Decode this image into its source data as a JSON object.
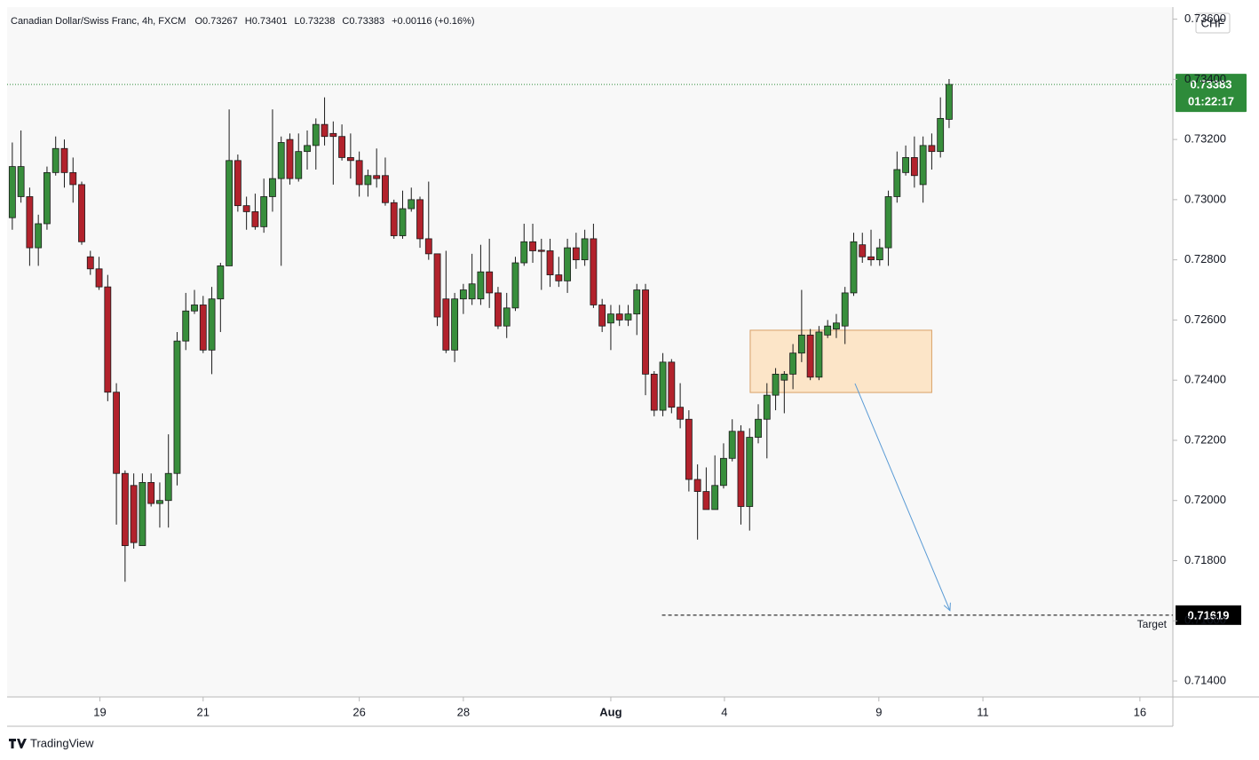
{
  "chart_data": {
    "type": "candlestick",
    "header": {
      "symbol": "Canadian Dollar/Swiss Franc, 4h, FXCM",
      "fields": [
        {
          "key": "O",
          "text": "0.73267"
        },
        {
          "key": "H",
          "text": "0.73401"
        },
        {
          "key": "L",
          "text": "0.73238"
        },
        {
          "key": "C",
          "text": "0.73383"
        }
      ],
      "change": "+0.00116 (+0.16%)"
    },
    "currency": "CHF",
    "up_color": "#388e3c",
    "down_color": "#b2222c",
    "open": [
      0.7294,
      0.7301,
      0.7301,
      0.7284,
      0.7292,
      0.7309,
      0.7317,
      0.7309,
      0.7305,
      0.7281,
      0.7277,
      0.7271,
      0.7236,
      0.7209,
      0.7205,
      0.7185,
      0.7206,
      0.7199,
      0.72,
      0.7209,
      0.7253,
      0.7263,
      0.7265,
      0.725,
      0.7267,
      0.7278,
      0.7313,
      0.7298,
      0.7296,
      0.7291,
      0.7301,
      0.7307,
      0.732,
      0.7307,
      0.7316,
      0.7318,
      0.7325,
      0.7322,
      0.7321,
      0.7314,
      0.7313,
      0.7305,
      0.7308,
      0.7308,
      0.7299,
      0.7288,
      0.7297,
      0.73,
      0.7287,
      0.7282,
      0.7267,
      0.725,
      0.7267,
      0.7267,
      0.7267,
      0.7276,
      0.7269,
      0.7258,
      0.7264,
      0.7279,
      0.7286,
      0.72832,
      0.7283,
      0.7275,
      0.7273,
      0.7284,
      0.728,
      0.7287,
      0.7265,
      0.7259,
      0.7262,
      0.726,
      0.7262,
      0.727,
      0.7242,
      0.723,
      0.7246,
      0.7231,
      0.7227,
      0.7207,
      0.7203,
      0.7197,
      0.7205,
      0.7214,
      0.7223,
      0.7198,
      0.7221,
      0.7227,
      0.7235,
      0.724,
      0.7242,
      0.7249,
      0.7255,
      0.7241,
      0.7255,
      0.7257,
      0.7258,
      0.7269,
      0.7285,
      0.7281,
      0.728,
      0.7284,
      0.7301,
      0.7309,
      0.7314,
      0.7305,
      0.7318,
      0.7316,
      0.73267
    ],
    "high": [
      0.7319,
      0.7323,
      0.7304,
      0.7295,
      0.7311,
      0.7321,
      0.732,
      0.7314,
      0.7306,
      0.7283,
      0.7281,
      0.7275,
      0.7239,
      0.721,
      0.7209,
      0.7209,
      0.7209,
      0.7206,
      0.7222,
      0.7256,
      0.7269,
      0.727,
      0.7268,
      0.7271,
      0.7279,
      0.733,
      0.7315,
      0.7301,
      0.7302,
      0.7307,
      0.733,
      0.7321,
      0.7322,
      0.7322,
      0.7323,
      0.7327,
      0.7334,
      0.7326,
      0.7325,
      0.7322,
      0.7316,
      0.731,
      0.7317,
      0.7314,
      0.73,
      0.7303,
      0.7304,
      0.7301,
      0.7306,
      0.7282,
      0.7283,
      0.7269,
      0.7272,
      0.7282,
      0.7285,
      0.7287,
      0.7271,
      0.7269,
      0.7281,
      0.7292,
      0.7292,
      0.7287,
      0.7287,
      0.7281,
      0.7287,
      0.7289,
      0.729,
      0.7292,
      0.7267,
      0.7265,
      0.7265,
      0.7265,
      0.7272,
      0.7272,
      0.7243,
      0.7249,
      0.7247,
      0.7239,
      0.723,
      0.7212,
      0.7211,
      0.7215,
      0.7219,
      0.7227,
      0.7225,
      0.7224,
      0.7232,
      0.7239,
      0.7244,
      0.7243,
      0.7252,
      0.727,
      0.7257,
      0.7258,
      0.726,
      0.7262,
      0.7271,
      0.7289,
      0.7289,
      0.729,
      0.7287,
      0.7303,
      0.7316,
      0.7318,
      0.7321,
      0.7321,
      0.7322,
      0.7334,
      0.73401
    ],
    "low": [
      0.729,
      0.7299,
      0.7278,
      0.7278,
      0.729,
      0.7308,
      0.7304,
      0.7299,
      0.7285,
      0.7275,
      0.727,
      0.7233,
      0.7192,
      0.7173,
      0.7184,
      0.7185,
      0.7198,
      0.7191,
      0.7191,
      0.7205,
      0.725,
      0.7262,
      0.7249,
      0.7242,
      0.7256,
      0.7278,
      0.7296,
      0.729,
      0.729,
      0.7289,
      0.7296,
      0.7278,
      0.7305,
      0.7306,
      0.731,
      0.731,
      0.7318,
      0.7305,
      0.7313,
      0.7307,
      0.7301,
      0.7301,
      0.7304,
      0.7298,
      0.7287,
      0.7287,
      0.7296,
      0.7284,
      0.728,
      0.7258,
      0.7249,
      0.7246,
      0.7262,
      0.7265,
      0.7265,
      0.7264,
      0.7257,
      0.7254,
      0.7263,
      0.7278,
      0.7279,
      0.727,
      0.7271,
      0.7271,
      0.7269,
      0.7277,
      0.7278,
      0.7264,
      0.7256,
      0.725,
      0.7258,
      0.7258,
      0.7255,
      0.7235,
      0.7228,
      0.7228,
      0.7229,
      0.7224,
      0.7203,
      0.7187,
      0.7197,
      0.7197,
      0.7204,
      0.7213,
      0.7192,
      0.719,
      0.7219,
      0.7214,
      0.723,
      0.7229,
      0.7237,
      0.7246,
      0.724,
      0.724,
      0.7254,
      0.7254,
      0.7252,
      0.7268,
      0.7279,
      0.7278,
      0.7278,
      0.7278,
      0.7299,
      0.7308,
      0.7304,
      0.7299,
      0.731,
      0.7314,
      0.73238
    ],
    "close": [
      0.7311,
      0.7311,
      0.7284,
      0.7292,
      0.7309,
      0.7317,
      0.7309,
      0.7305,
      0.7286,
      0.7277,
      0.7271,
      0.7236,
      0.7209,
      0.7185,
      0.7186,
      0.7206,
      0.7199,
      0.72,
      0.7209,
      0.7253,
      0.7263,
      0.7265,
      0.725,
      0.7267,
      0.7278,
      0.7313,
      0.7298,
      0.7296,
      0.7291,
      0.7301,
      0.7307,
      0.7319,
      0.7307,
      0.7316,
      0.7318,
      0.7325,
      0.7321,
      0.7321,
      0.7314,
      0.7313,
      0.7305,
      0.7308,
      0.7307,
      0.7299,
      0.7288,
      0.7297,
      0.73,
      0.7287,
      0.7282,
      0.7261,
      0.725,
      0.7267,
      0.727,
      0.7272,
      0.7276,
      0.7269,
      0.7258,
      0.7264,
      0.7279,
      0.7286,
      0.7283,
      0.72828,
      0.7275,
      0.7273,
      0.7284,
      0.728,
      0.7287,
      0.7265,
      0.7258,
      0.7262,
      0.726,
      0.7262,
      0.727,
      0.7242,
      0.723,
      0.7246,
      0.7231,
      0.7227,
      0.7207,
      0.7203,
      0.7197,
      0.7205,
      0.7214,
      0.7223,
      0.7198,
      0.7221,
      0.7227,
      0.7235,
      0.7242,
      0.7242,
      0.7249,
      0.7255,
      0.7241,
      0.7256,
      0.7258,
      0.7259,
      0.7269,
      0.7286,
      0.7281,
      0.728,
      0.7284,
      0.7301,
      0.731,
      0.7314,
      0.7308,
      0.7318,
      0.7316,
      0.7327,
      0.73383
    ],
    "xlim": [
      -0.6,
      133.8
    ],
    "xticks": [
      {
        "value": 10.1,
        "label": "19"
      },
      {
        "value": 22,
        "label": "21"
      },
      {
        "value": 40,
        "label": "26"
      },
      {
        "value": 52,
        "label": "28"
      },
      {
        "value": 69,
        "label": "Aug"
      },
      {
        "value": 82.1,
        "label": "4"
      },
      {
        "value": 99.9,
        "label": "9"
      },
      {
        "value": 111.9,
        "label": "11"
      },
      {
        "value": 130,
        "label": "16"
      }
    ],
    "ylim": [
      0.71347,
      0.7364
    ],
    "yticks": [
      {
        "value": 0.714,
        "label": "0.71400"
      },
      {
        "value": 0.716,
        "label": "0.71600"
      },
      {
        "value": 0.718,
        "label": "0.71800"
      },
      {
        "value": 0.72,
        "label": "0.72000"
      },
      {
        "value": 0.722,
        "label": "0.72200"
      },
      {
        "value": 0.724,
        "label": "0.72400"
      },
      {
        "value": 0.726,
        "label": "0.72600"
      },
      {
        "value": 0.728,
        "label": "0.72800"
      },
      {
        "value": 0.73,
        "label": "0.73000"
      },
      {
        "value": 0.732,
        "label": "0.73200"
      },
      {
        "value": 0.734,
        "label": "0.73400"
      },
      {
        "value": 0.736,
        "label": "0.73600"
      }
    ],
    "grid": false,
    "last_price": {
      "value": 0.73383,
      "label": "0.73383",
      "countdown": "01:22:17",
      "color": "#2e8b3a"
    },
    "target": {
      "value": 0.71619,
      "label": "0.71619",
      "text": "Target",
      "x_start": 74.9
    },
    "zone": {
      "x0": 85.07,
      "x1": 106.0,
      "top": 0.72566,
      "bottom": 0.72359,
      "color": "#fce5c8"
    },
    "arrow": {
      "x0": 97.15,
      "y0": 0.72389,
      "x1": 108.1,
      "y1": 0.71634,
      "color": "#5b9bd5"
    }
  },
  "footer": {
    "brand": "TradingView"
  }
}
